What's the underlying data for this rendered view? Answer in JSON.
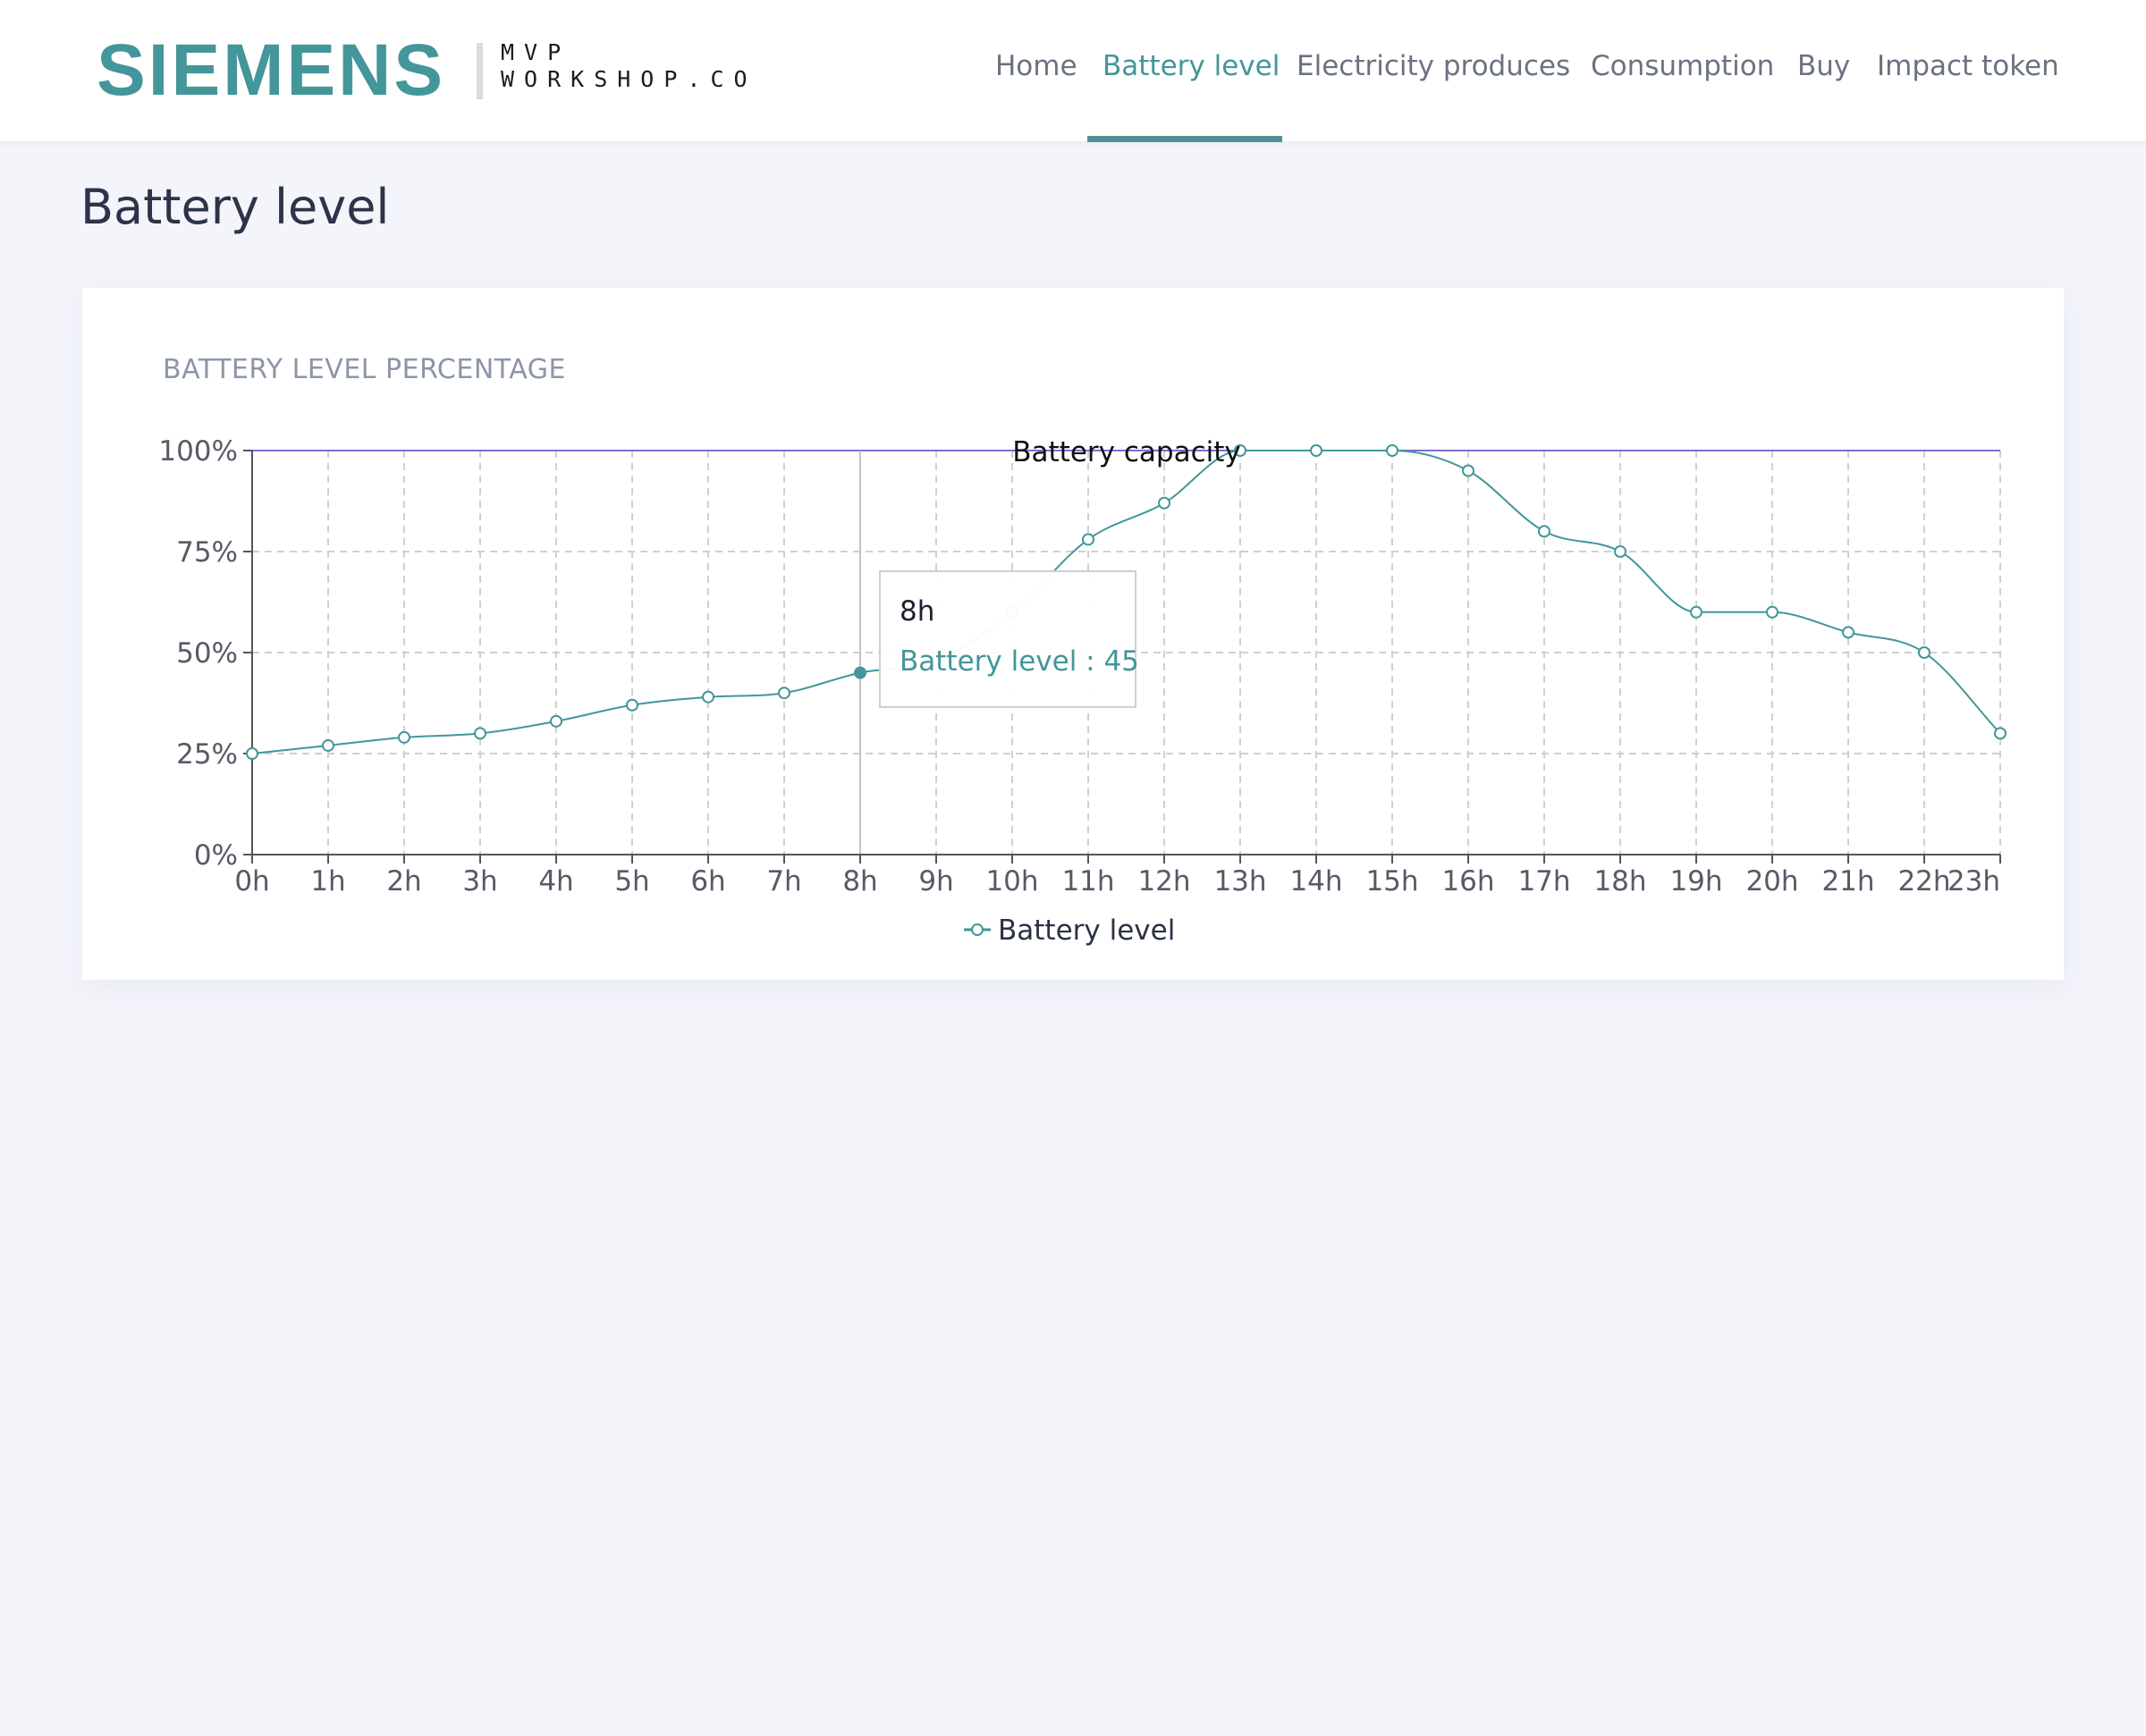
{
  "header": {
    "brand": "SIEMENS",
    "partner_line1": "MVP",
    "partner_line2": "WORKSHOP.CO",
    "nav": [
      {
        "label": "Home",
        "active": false
      },
      {
        "label": "Battery level",
        "active": true
      },
      {
        "label": "Electricity produces",
        "active": false
      },
      {
        "label": "Consumption",
        "active": false
      },
      {
        "label": "Buy",
        "active": false
      },
      {
        "label": "Impact token",
        "active": false
      }
    ]
  },
  "page": {
    "title": "Battery level"
  },
  "card": {
    "title": "BATTERY LEVEL PERCENTAGE"
  },
  "colors": {
    "accent": "#43969a",
    "reference_line": "#7b6fd6",
    "grid": "#d0d0d0",
    "axis": "#555555"
  },
  "tooltip": {
    "title": "8h",
    "value_text": "Battery level : 45"
  },
  "chart_data": {
    "type": "line",
    "categories": [
      "0h",
      "1h",
      "2h",
      "3h",
      "4h",
      "5h",
      "6h",
      "7h",
      "8h",
      "9h",
      "10h",
      "11h",
      "12h",
      "13h",
      "14h",
      "15h",
      "16h",
      "17h",
      "18h",
      "19h",
      "20h",
      "21h",
      "22h",
      "23h"
    ],
    "series": [
      {
        "name": "Battery level",
        "values": [
          25,
          27,
          29,
          30,
          33,
          37,
          39,
          40,
          45,
          48,
          60,
          78,
          87,
          100,
          100,
          100,
          95,
          80,
          75,
          60,
          60,
          55,
          50,
          30
        ]
      }
    ],
    "y_ticks": [
      "0%",
      "25%",
      "50%",
      "75%",
      "100%"
    ],
    "ylim": [
      0,
      100
    ],
    "reference_line": {
      "value": 100,
      "label": "Battery capacity"
    },
    "grid": true,
    "legend": {
      "position": "bottom-center",
      "label": "Battery level"
    },
    "highlighted_category": "8h",
    "highlighted_value": 45
  }
}
